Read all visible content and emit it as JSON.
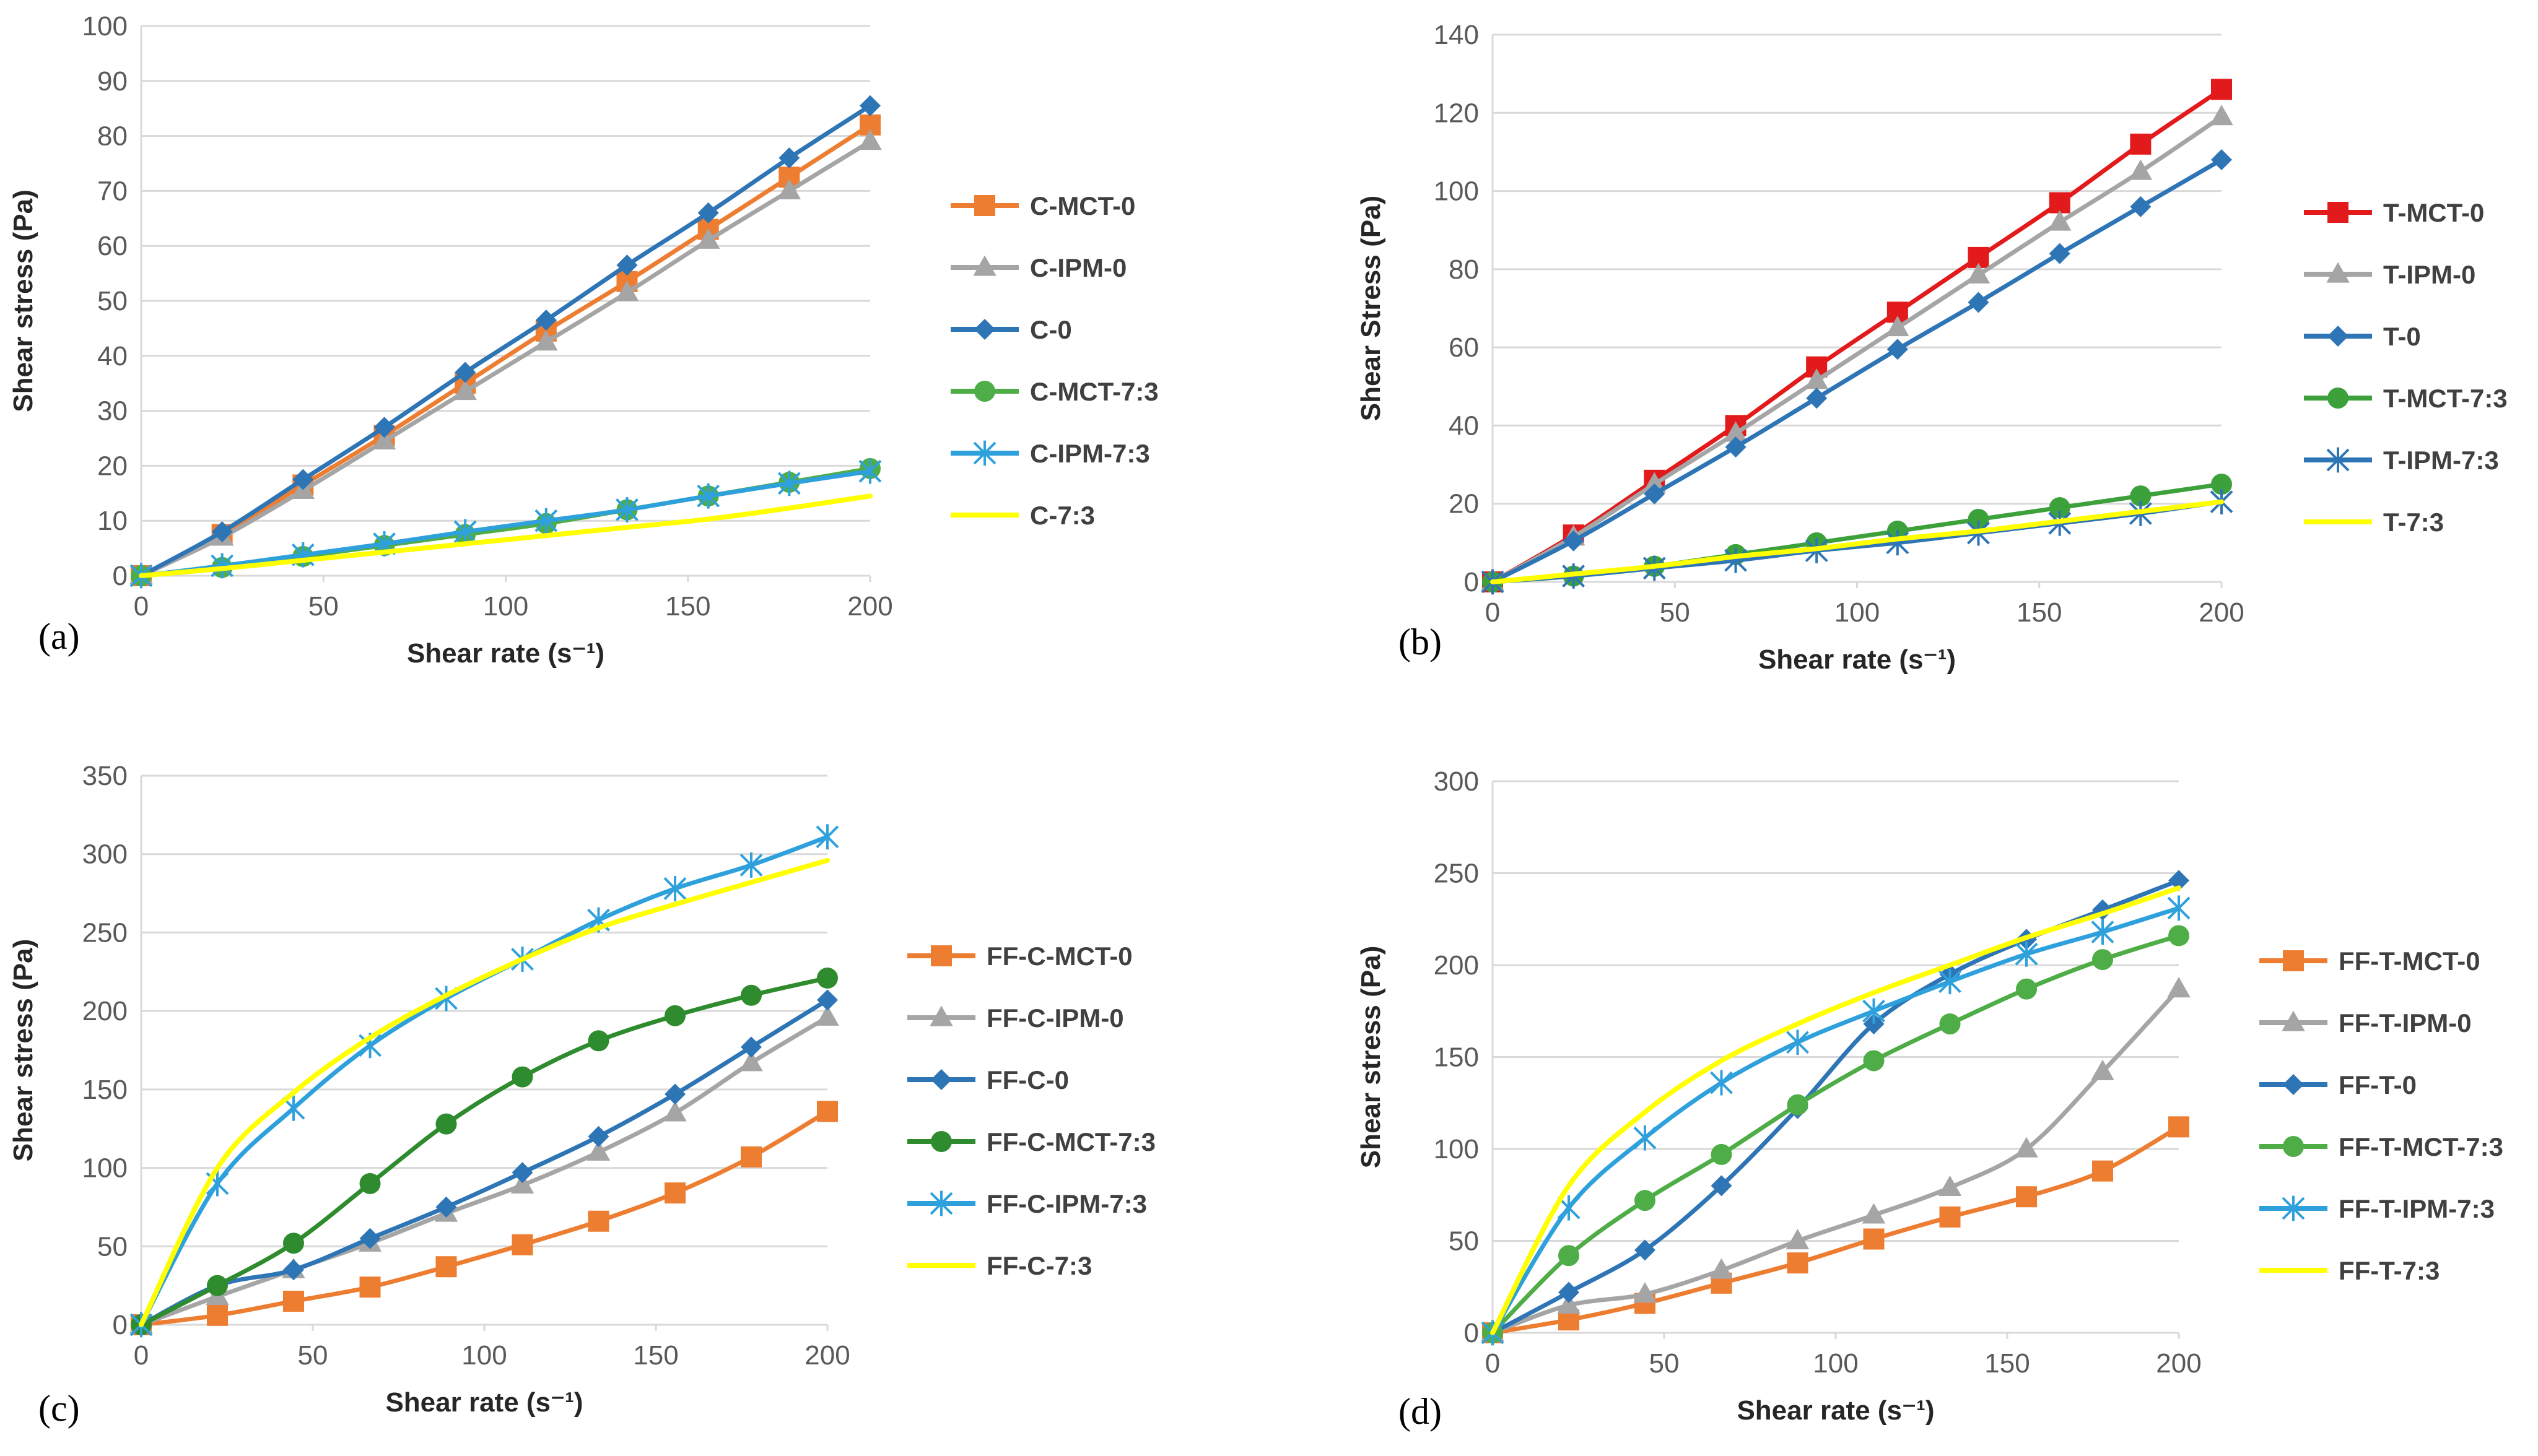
{
  "chart_data": [
    {
      "type": "line",
      "panel_label": "(a)",
      "xlabel": "Shear rate (s⁻¹)",
      "ylabel": "Shear stress (Pa)",
      "xlim": [
        0,
        200
      ],
      "ylim": [
        0,
        100
      ],
      "xticks": [
        0,
        50,
        100,
        150,
        200
      ],
      "yticks": [
        0,
        10,
        20,
        30,
        40,
        50,
        60,
        70,
        80,
        90,
        100
      ],
      "grid": "horizontal",
      "legend": "right",
      "x": [
        0,
        22.2,
        44.4,
        66.7,
        88.9,
        111.1,
        133.3,
        155.6,
        177.8,
        200
      ],
      "series": [
        {
          "name": "C-MCT-0",
          "color": "#ED7D31",
          "marker": "square",
          "values": [
            0,
            7.5,
            16.5,
            25.5,
            35,
            44.5,
            53.5,
            63,
            72.5,
            82
          ]
        },
        {
          "name": "C-IPM-0",
          "color": "#A5A5A5",
          "marker": "triangle",
          "values": [
            0,
            7,
            15.5,
            24.5,
            33.5,
            42.5,
            51.5,
            61,
            70,
            79
          ]
        },
        {
          "name": "C-0",
          "color": "#2E75B6",
          "marker": "diamond",
          "values": [
            0,
            8,
            17.5,
            27,
            37,
            46.5,
            56.5,
            66,
            76,
            85.5
          ]
        },
        {
          "name": "C-MCT-7:3",
          "color": "#4EAD46",
          "marker": "circle",
          "values": [
            0,
            1.5,
            3.5,
            5.5,
            7.5,
            9.5,
            12,
            14.5,
            17,
            19.5
          ]
        },
        {
          "name": "C-IPM-7:3",
          "color": "#2EA1DC",
          "marker": "star",
          "values": [
            0,
            1.8,
            3.8,
            5.8,
            8,
            10,
            12,
            14.5,
            16.8,
            19
          ]
        },
        {
          "name": "C-7:3",
          "color": "#FFFF00",
          "marker": "none",
          "values": [
            0,
            1.3,
            2.8,
            4.3,
            5.8,
            7.3,
            8.8,
            10.3,
            12.3,
            14.5
          ]
        }
      ]
    },
    {
      "type": "line",
      "panel_label": "(b)",
      "xlabel": "Shear rate (s⁻¹)",
      "ylabel": "Shear Stress (Pa)",
      "xlim": [
        0,
        200
      ],
      "ylim": [
        0,
        140
      ],
      "xticks": [
        0,
        50,
        100,
        150,
        200
      ],
      "yticks": [
        0,
        20,
        40,
        60,
        80,
        100,
        120,
        140
      ],
      "grid": "horizontal",
      "legend": "right",
      "x": [
        0,
        22.2,
        44.4,
        66.7,
        88.9,
        111.1,
        133.3,
        155.6,
        177.8,
        200
      ],
      "series": [
        {
          "name": "T-MCT-0",
          "color": "#E31A1C",
          "marker": "square",
          "values": [
            0,
            12,
            26,
            40,
            55,
            69,
            83,
            97,
            112,
            126
          ]
        },
        {
          "name": "T-IPM-0",
          "color": "#A5A5A5",
          "marker": "triangle",
          "values": [
            0,
            11.5,
            25,
            38,
            51.5,
            65,
            78.5,
            92,
            105,
            119
          ]
        },
        {
          "name": "T-0",
          "color": "#2E75B6",
          "marker": "diamond",
          "values": [
            0,
            10.5,
            22.5,
            34.5,
            47,
            59.5,
            71.5,
            84,
            96,
            108
          ]
        },
        {
          "name": "T-MCT-7:3",
          "color": "#3DA13B",
          "marker": "circle",
          "values": [
            0,
            1.5,
            4,
            7,
            10,
            13,
            16,
            19,
            22,
            25
          ]
        },
        {
          "name": "T-IPM-7:3",
          "color": "#2E75B6",
          "marker": "star",
          "values": [
            0,
            1.5,
            3.5,
            5.5,
            8,
            10,
            12.5,
            15,
            17.5,
            20.5
          ]
        },
        {
          "name": "T-7:3",
          "color": "#FFFF00",
          "marker": "none",
          "values": [
            0,
            2,
            4,
            6.5,
            8.5,
            11,
            13,
            15.5,
            18,
            20.5
          ]
        }
      ]
    },
    {
      "type": "line",
      "panel_label": "(c)",
      "xlabel": "Shear rate (s⁻¹)",
      "ylabel": "Shear stress (Pa)",
      "xlim": [
        0,
        200
      ],
      "ylim": [
        0,
        350
      ],
      "xticks": [
        0,
        50,
        100,
        150,
        200
      ],
      "yticks": [
        0,
        50,
        100,
        150,
        200,
        250,
        300,
        350
      ],
      "grid": "horizontal",
      "legend": "right",
      "x": [
        0,
        22.2,
        44.4,
        66.7,
        88.9,
        111.1,
        133.3,
        155.6,
        177.8,
        200
      ],
      "series": [
        {
          "name": "FF-C-MCT-0",
          "color": "#ED7D31",
          "marker": "square",
          "values": [
            0,
            6,
            15,
            24,
            37,
            51,
            66,
            84,
            107,
            136
          ]
        },
        {
          "name": "FF-C-IPM-0",
          "color": "#A5A5A5",
          "marker": "triangle",
          "values": [
            0,
            18,
            35,
            52,
            71,
            89,
            110,
            135,
            167,
            196
          ]
        },
        {
          "name": "FF-C-0",
          "color": "#2E75B6",
          "marker": "diamond",
          "values": [
            0,
            25,
            35,
            55,
            75,
            97,
            120,
            147,
            177,
            207
          ]
        },
        {
          "name": "FF-C-MCT-7:3",
          "color": "#2E8B2E",
          "marker": "circle",
          "values": [
            0,
            25,
            52,
            90,
            128,
            158,
            181,
            197,
            210,
            221
          ]
        },
        {
          "name": "FF-C-IPM-7:3",
          "color": "#2EA1DC",
          "marker": "star",
          "values": [
            0,
            90,
            138,
            178,
            208,
            233,
            258,
            278,
            293,
            311
          ]
        },
        {
          "name": "FF-C-7:3",
          "color": "#FFFF00",
          "marker": "none",
          "values": [
            0,
            100,
            148,
            183,
            210,
            233,
            253,
            268,
            282,
            296
          ]
        }
      ]
    },
    {
      "type": "line",
      "panel_label": "(d)",
      "xlabel": "Shear rate (s⁻¹)",
      "ylabel": "Shear stress (Pa)",
      "xlim": [
        0,
        200
      ],
      "ylim": [
        0,
        300
      ],
      "xticks": [
        0,
        50,
        100,
        150,
        200
      ],
      "yticks": [
        0,
        50,
        100,
        150,
        200,
        250,
        300
      ],
      "grid": "horizontal",
      "legend": "right",
      "x": [
        0,
        22.2,
        44.4,
        66.7,
        88.9,
        111.1,
        133.3,
        155.6,
        177.8,
        200
      ],
      "series": [
        {
          "name": "FF-T-MCT-0",
          "color": "#ED7D31",
          "marker": "square",
          "values": [
            0,
            7,
            16,
            27,
            38,
            51,
            63,
            74,
            88,
            112
          ]
        },
        {
          "name": "FF-T-IPM-0",
          "color": "#A5A5A5",
          "marker": "triangle",
          "values": [
            0,
            15,
            21,
            34,
            50,
            64,
            79,
            100,
            142,
            187
          ]
        },
        {
          "name": "FF-T-0",
          "color": "#2E75B6",
          "marker": "diamond",
          "values": [
            0,
            22,
            45,
            80,
            122,
            168,
            195,
            214,
            230,
            246
          ]
        },
        {
          "name": "FF-T-MCT-7:3",
          "color": "#4EAD46",
          "marker": "circle",
          "values": [
            0,
            42,
            72,
            97,
            124,
            148,
            168,
            187,
            203,
            216
          ]
        },
        {
          "name": "FF-T-IPM-7:3",
          "color": "#2EA1DC",
          "marker": "star",
          "values": [
            0,
            68,
            106,
            136,
            158,
            175,
            191,
            206,
            218,
            231
          ]
        },
        {
          "name": "FF-T-7:3",
          "color": "#FFFF00",
          "marker": "none",
          "values": [
            0,
            80,
            120,
            148,
            168,
            185,
            200,
            215,
            228,
            242
          ]
        }
      ]
    }
  ]
}
